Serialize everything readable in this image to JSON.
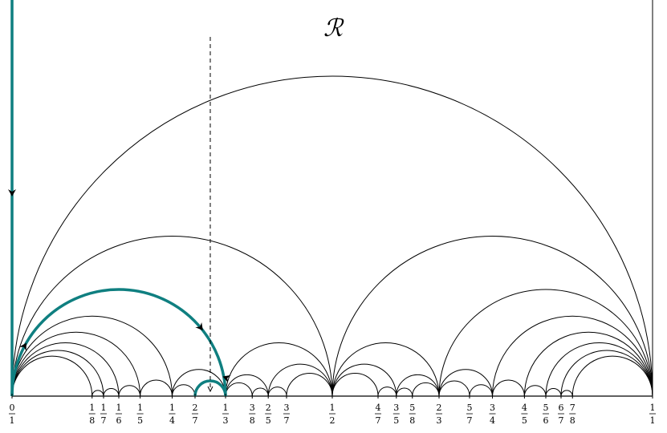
{
  "title": "ℛ",
  "colors": {
    "arc": "#000000",
    "path": "#0f7f80",
    "axis": "#000000"
  },
  "ticks": [
    {
      "n": "0",
      "d": "1",
      "v": 0
    },
    {
      "n": "1",
      "d": "8",
      "v": 0.125
    },
    {
      "n": "1",
      "d": "7",
      "v": 0.142857
    },
    {
      "n": "1",
      "d": "6",
      "v": 0.166667
    },
    {
      "n": "1",
      "d": "5",
      "v": 0.2
    },
    {
      "n": "1",
      "d": "4",
      "v": 0.25
    },
    {
      "n": "2",
      "d": "7",
      "v": 0.285714
    },
    {
      "n": "1",
      "d": "3",
      "v": 0.333333
    },
    {
      "n": "3",
      "d": "8",
      "v": 0.375
    },
    {
      "n": "2",
      "d": "5",
      "v": 0.4
    },
    {
      "n": "3",
      "d": "7",
      "v": 0.428571
    },
    {
      "n": "1",
      "d": "2",
      "v": 0.5
    },
    {
      "n": "4",
      "d": "7",
      "v": 0.571429
    },
    {
      "n": "3",
      "d": "5",
      "v": 0.6
    },
    {
      "n": "5",
      "d": "8",
      "v": 0.625
    },
    {
      "n": "2",
      "d": "3",
      "v": 0.666667
    },
    {
      "n": "5",
      "d": "7",
      "v": 0.714286
    },
    {
      "n": "3",
      "d": "4",
      "v": 0.75
    },
    {
      "n": "4",
      "d": "5",
      "v": 0.8
    },
    {
      "n": "5",
      "d": "6",
      "v": 0.833333
    },
    {
      "n": "6",
      "d": "7",
      "v": 0.857143
    },
    {
      "n": "7",
      "d": "8",
      "v": 0.875
    },
    {
      "n": "1",
      "d": "1",
      "v": 1
    }
  ],
  "arcs": [
    [
      0,
      1
    ],
    [
      0,
      0.5
    ],
    [
      0.5,
      1
    ],
    [
      0,
      0.333333
    ],
    [
      0.333333,
      0.5
    ],
    [
      0.5,
      0.666667
    ],
    [
      0.666667,
      1
    ],
    [
      0,
      0.25
    ],
    [
      0.25,
      0.333333
    ],
    [
      0.333333,
      0.4
    ],
    [
      0.4,
      0.5
    ],
    [
      0.5,
      0.6
    ],
    [
      0.6,
      0.666667
    ],
    [
      0.666667,
      0.75
    ],
    [
      0.75,
      1
    ],
    [
      0,
      0.2
    ],
    [
      0.2,
      0.25
    ],
    [
      0.25,
      0.285714
    ],
    [
      0.285714,
      0.333333
    ],
    [
      0.333333,
      0.375
    ],
    [
      0.375,
      0.4
    ],
    [
      0.4,
      0.428571
    ],
    [
      0.428571,
      0.5
    ],
    [
      0.5,
      0.571429
    ],
    [
      0.571429,
      0.6
    ],
    [
      0.6,
      0.625
    ],
    [
      0.625,
      0.666667
    ],
    [
      0.666667,
      0.714286
    ],
    [
      0.714286,
      0.75
    ],
    [
      0.75,
      0.8
    ],
    [
      0.8,
      1
    ],
    [
      0,
      0.166667
    ],
    [
      0.166667,
      0.2
    ],
    [
      0.8,
      0.833333
    ],
    [
      0.833333,
      1
    ],
    [
      0,
      0.142857
    ],
    [
      0.142857,
      0.166667
    ],
    [
      0.833333,
      0.857143
    ],
    [
      0.857143,
      1
    ],
    [
      0,
      0.125
    ],
    [
      0.125,
      0.142857
    ],
    [
      0.857143,
      0.875
    ],
    [
      0.875,
      1
    ]
  ],
  "path": {
    "arcs": [
      [
        0,
        0.333333
      ],
      [
        0.285714,
        0.333333
      ]
    ],
    "dashed_x": 0.3095
  }
}
